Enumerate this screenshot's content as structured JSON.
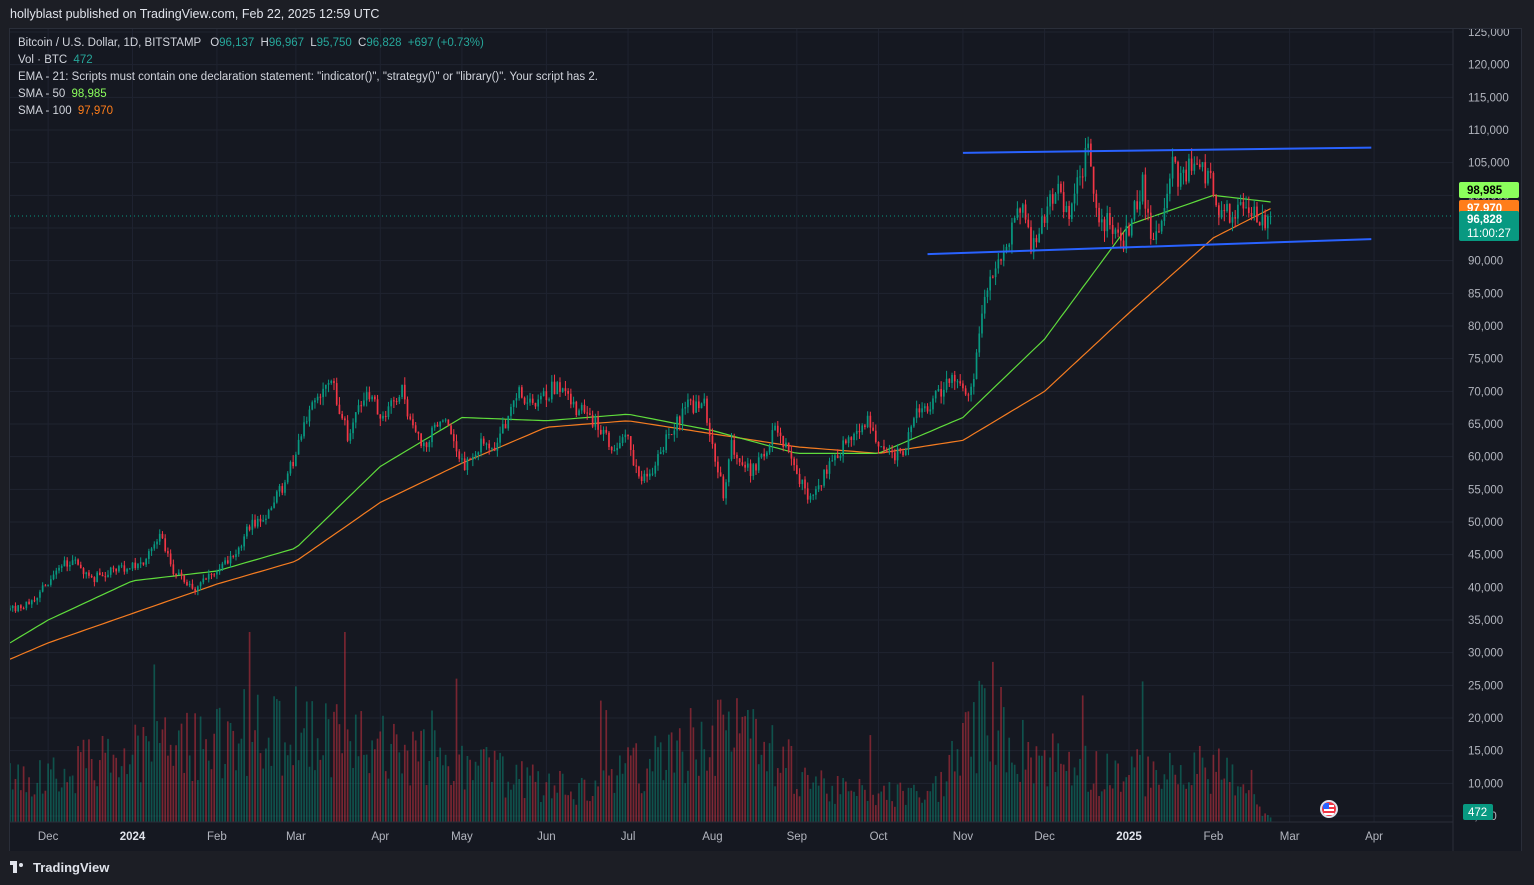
{
  "header": {
    "publisher": "hollyblast published on TradingView.com, Feb 22, 2025 12:59 UTC"
  },
  "legend": {
    "symbol": "Bitcoin / U.S. Dollar, 1D, BITSTAMP",
    "open_label": "O",
    "open": "96,137",
    "high_label": "H",
    "high": "96,967",
    "low_label": "L",
    "low": "95,750",
    "close_label": "C",
    "close": "96,828",
    "change": "+697 (+0.73%)",
    "vol_label": "Vol · BTC",
    "vol_value": "472",
    "ema_label": "EMA - 21: Scripts must contain one declaration statement: \"indicator()\", \"strategy()\" or \"library()\". Your script has 2.",
    "sma50_label": "SMA - 50",
    "sma50_value": "98,985",
    "sma100_label": "SMA - 100",
    "sma100_value": "97,970"
  },
  "price_axis": {
    "ticks": [
      "125,000",
      "120,000",
      "115,000",
      "110,000",
      "105,000",
      "100,000",
      "95,000",
      "90,000",
      "85,000",
      "80,000",
      "75,000",
      "70,000",
      "65,000",
      "60,000",
      "55,000",
      "50,000",
      "45,000",
      "40,000",
      "35,000",
      "30,000",
      "25,000",
      "20,000",
      "15,000",
      "10,000",
      "5,000"
    ],
    "tick_values": [
      125000,
      120000,
      115000,
      110000,
      105000,
      100000,
      95000,
      90000,
      85000,
      80000,
      75000,
      70000,
      65000,
      60000,
      55000,
      50000,
      45000,
      40000,
      35000,
      30000,
      25000,
      20000,
      15000,
      10000,
      5000
    ],
    "badges": [
      {
        "id": "sma50",
        "text": "98,985",
        "value": 98985,
        "color": "#8bff5c",
        "text_color": "#000000"
      },
      {
        "id": "sma100",
        "text": "97,970",
        "value": 97970,
        "color": "#ff7d1a",
        "text_color": "#ffffff"
      },
      {
        "id": "last",
        "text": "96,828",
        "subtext": "11:00:27",
        "value": 96828,
        "color": "#089981",
        "text_color": "#ffffff"
      }
    ],
    "volume_badge": "472"
  },
  "time_axis": {
    "labels": [
      "Dec",
      "2024",
      "Feb",
      "Mar",
      "Apr",
      "May",
      "Jun",
      "Jul",
      "Aug",
      "Sep",
      "Oct",
      "Nov",
      "Dec",
      "2025",
      "Feb",
      "Mar",
      "Apr"
    ],
    "dates": [
      "2023-12-01",
      "2024-01-01",
      "2024-02-01",
      "2024-03-01",
      "2024-04-01",
      "2024-05-01",
      "2024-06-01",
      "2024-07-01",
      "2024-08-01",
      "2024-09-01",
      "2024-10-01",
      "2024-11-01",
      "2024-12-01",
      "2025-01-01",
      "2025-02-01",
      "2025-03-01",
      "2025-04-01"
    ],
    "bold": [
      "2024",
      "2025"
    ]
  },
  "footer": {
    "brand": "TradingView"
  },
  "chart_data": {
    "type": "candlestick",
    "title": "Bitcoin / U.S. Dollar, 1D, BITSTAMP",
    "xlabel": "",
    "ylabel": "",
    "ylim": [
      5000,
      125000
    ],
    "xlim": [
      "2023-11-17",
      "2025-04-30"
    ],
    "grid": true,
    "colors": {
      "up": "#089981",
      "down": "#f23645",
      "sma50": "#5fdc3c",
      "sma100": "#f57c21",
      "trendline": "#2962ff"
    },
    "price_keypoints": [
      [
        "2023-11-17",
        36500
      ],
      [
        "2023-11-25",
        37600
      ],
      [
        "2023-12-05",
        43000
      ],
      [
        "2023-12-10",
        44000
      ],
      [
        "2023-12-18",
        41500
      ],
      [
        "2023-12-28",
        43000
      ],
      [
        "2024-01-05",
        44000
      ],
      [
        "2024-01-11",
        48000
      ],
      [
        "2024-01-16",
        42500
      ],
      [
        "2024-01-23",
        39500
      ],
      [
        "2024-02-01",
        42500
      ],
      [
        "2024-02-08",
        45000
      ],
      [
        "2024-02-13",
        49500
      ],
      [
        "2024-02-20",
        51500
      ],
      [
        "2024-02-27",
        57000
      ],
      [
        "2024-03-05",
        66000
      ],
      [
        "2024-03-10",
        69000
      ],
      [
        "2024-03-14",
        72000
      ],
      [
        "2024-03-20",
        63000
      ],
      [
        "2024-03-27",
        70000
      ],
      [
        "2024-04-02",
        65500
      ],
      [
        "2024-04-09",
        70500
      ],
      [
        "2024-04-13",
        64000
      ],
      [
        "2024-04-17",
        61500
      ],
      [
        "2024-04-23",
        66500
      ],
      [
        "2024-04-30",
        60500
      ],
      [
        "2024-05-02",
        58000
      ],
      [
        "2024-05-08",
        62000
      ],
      [
        "2024-05-14",
        61500
      ],
      [
        "2024-05-21",
        70000
      ],
      [
        "2024-05-28",
        68000
      ],
      [
        "2024-06-05",
        71000
      ],
      [
        "2024-06-12",
        67500
      ],
      [
        "2024-06-20",
        65000
      ],
      [
        "2024-06-25",
        61500
      ],
      [
        "2024-07-01",
        62500
      ],
      [
        "2024-07-05",
        56000
      ],
      [
        "2024-07-09",
        57000
      ],
      [
        "2024-07-15",
        63000
      ],
      [
        "2024-07-22",
        67500
      ],
      [
        "2024-07-29",
        68000
      ],
      [
        "2024-08-05",
        54000
      ],
      [
        "2024-08-08",
        61500
      ],
      [
        "2024-08-15",
        57500
      ],
      [
        "2024-08-20",
        61000
      ],
      [
        "2024-08-25",
        64500
      ],
      [
        "2024-08-30",
        59000
      ],
      [
        "2024-09-06",
        53500
      ],
      [
        "2024-09-12",
        58000
      ],
      [
        "2024-09-20",
        63000
      ],
      [
        "2024-09-27",
        66000
      ],
      [
        "2024-10-03",
        60500
      ],
      [
        "2024-10-10",
        60500
      ],
      [
        "2024-10-15",
        66500
      ],
      [
        "2024-10-21",
        68500
      ],
      [
        "2024-10-29",
        72500
      ],
      [
        "2024-11-03",
        68500
      ],
      [
        "2024-11-06",
        75500
      ],
      [
        "2024-11-11",
        88000
      ],
      [
        "2024-11-13",
        90000
      ],
      [
        "2024-11-17",
        91000
      ],
      [
        "2024-11-22",
        99000
      ],
      [
        "2024-11-26",
        92000
      ],
      [
        "2024-12-01",
        97000
      ],
      [
        "2024-12-05",
        101000
      ],
      [
        "2024-12-10",
        96500
      ],
      [
        "2024-12-16",
        106000
      ],
      [
        "2024-12-17",
        107000
      ],
      [
        "2024-12-20",
        97000
      ],
      [
        "2024-12-26",
        95000
      ],
      [
        "2024-12-30",
        92500
      ],
      [
        "2025-01-06",
        101500
      ],
      [
        "2025-01-09",
        93000
      ],
      [
        "2025-01-13",
        94500
      ],
      [
        "2025-01-17",
        104500
      ],
      [
        "2025-01-20",
        102000
      ],
      [
        "2025-01-24",
        104500
      ],
      [
        "2025-01-31",
        102500
      ],
      [
        "2025-02-03",
        97000
      ],
      [
        "2025-02-05",
        97500
      ],
      [
        "2025-02-10",
        97400
      ],
      [
        "2025-02-15",
        97500
      ],
      [
        "2025-02-19",
        96500
      ],
      [
        "2025-02-22",
        96828
      ]
    ],
    "sma50_keypoints": [
      [
        "2023-11-17",
        31500
      ],
      [
        "2023-12-01",
        35000
      ],
      [
        "2024-01-01",
        41000
      ],
      [
        "2024-02-01",
        42500
      ],
      [
        "2024-03-01",
        46000
      ],
      [
        "2024-04-01",
        58500
      ],
      [
        "2024-05-01",
        66000
      ],
      [
        "2024-06-01",
        65500
      ],
      [
        "2024-07-01",
        66500
      ],
      [
        "2024-08-01",
        64000
      ],
      [
        "2024-09-01",
        60500
      ],
      [
        "2024-10-01",
        60500
      ],
      [
        "2024-11-01",
        66000
      ],
      [
        "2024-12-01",
        78000
      ],
      [
        "2025-01-01",
        95500
      ],
      [
        "2025-02-01",
        100000
      ],
      [
        "2025-02-22",
        98985
      ]
    ],
    "sma100_keypoints": [
      [
        "2023-11-17",
        29000
      ],
      [
        "2023-12-01",
        31500
      ],
      [
        "2024-01-01",
        36000
      ],
      [
        "2024-02-01",
        40500
      ],
      [
        "2024-03-01",
        44000
      ],
      [
        "2024-04-01",
        53000
      ],
      [
        "2024-05-01",
        59000
      ],
      [
        "2024-06-01",
        64500
      ],
      [
        "2024-07-01",
        65500
      ],
      [
        "2024-08-01",
        63500
      ],
      [
        "2024-09-01",
        61500
      ],
      [
        "2024-10-01",
        60500
      ],
      [
        "2024-11-01",
        62500
      ],
      [
        "2024-12-01",
        70000
      ],
      [
        "2025-01-01",
        82000
      ],
      [
        "2025-02-01",
        93500
      ],
      [
        "2025-02-22",
        97970
      ]
    ],
    "trendlines": [
      {
        "name": "upper",
        "from": [
          "2024-11-01",
          106500
        ],
        "to": [
          "2025-03-31",
          107300
        ]
      },
      {
        "name": "lower",
        "from": [
          "2024-10-19",
          91000
        ],
        "to": [
          "2025-03-31",
          93300
        ]
      }
    ],
    "volume_keypoints": [
      [
        "2023-11-17",
        8000
      ],
      [
        "2024-01-11",
        14000
      ],
      [
        "2024-03-05",
        18000
      ],
      [
        "2024-03-14",
        16000
      ],
      [
        "2024-05-01",
        11000
      ],
      [
        "2024-06-15",
        6000
      ],
      [
        "2024-08-05",
        18000
      ],
      [
        "2024-09-15",
        6000
      ],
      [
        "2024-10-20",
        5000
      ],
      [
        "2024-11-11",
        22000
      ],
      [
        "2024-11-22",
        14000
      ],
      [
        "2024-12-20",
        10000
      ],
      [
        "2025-01-20",
        9000
      ],
      [
        "2025-02-03",
        11000
      ],
      [
        "2025-02-22",
        472
      ]
    ],
    "last_price": 96828
  }
}
